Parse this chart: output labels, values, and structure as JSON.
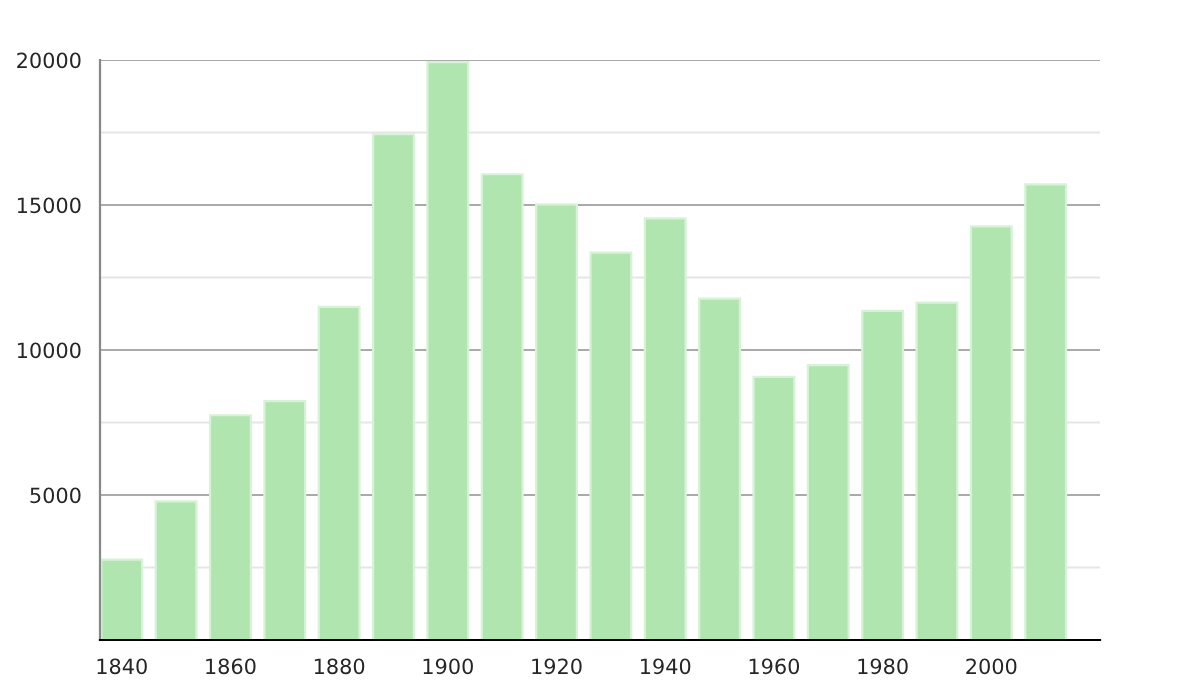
{
  "chart_data": {
    "type": "bar",
    "x": [
      1840,
      1850,
      1860,
      1870,
      1880,
      1890,
      1900,
      1910,
      1920,
      1930,
      1940,
      1950,
      1960,
      1970,
      1980,
      1990,
      2000,
      2010
    ],
    "values": [
      2770,
      4780,
      7750,
      8240,
      11490,
      17440,
      19930,
      16060,
      15020,
      13360,
      14540,
      11770,
      9070,
      9480,
      11350,
      11630,
      14260,
      15710
    ],
    "color": "#b0e5b0",
    "xlim": [
      1836,
      2020
    ],
    "xticks": [
      1840,
      1860,
      1880,
      1900,
      1920,
      1940,
      1960,
      1980,
      2000
    ],
    "ylim": [
      0,
      20000
    ],
    "yticks": [
      {
        "value": 2500,
        "label": null
      },
      5000,
      {
        "value": 7500,
        "label": null
      },
      10000,
      {
        "value": 12500,
        "label": null
      },
      15000,
      {
        "value": 17500,
        "label": null
      },
      20000
    ],
    "grid": "y"
  }
}
